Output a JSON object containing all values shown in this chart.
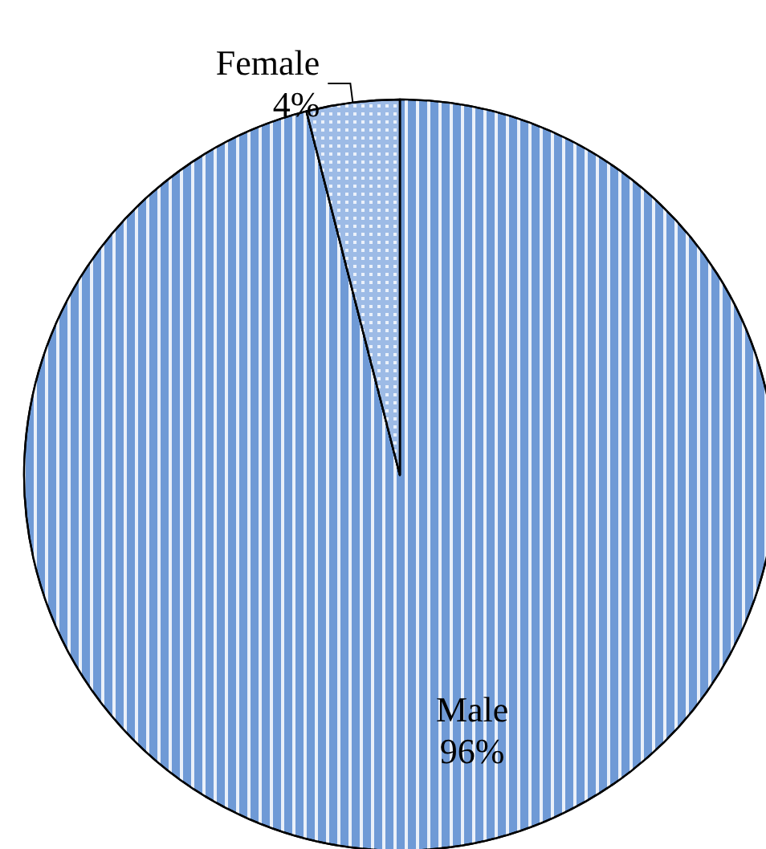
{
  "chart_data": {
    "type": "pie",
    "categories": [
      "Male",
      "Female"
    ],
    "values": [
      96,
      4
    ],
    "value_labels": [
      "96%",
      "4%"
    ],
    "colors": [
      "#6f9ad6",
      "#9dbbe6"
    ],
    "legend": false
  }
}
